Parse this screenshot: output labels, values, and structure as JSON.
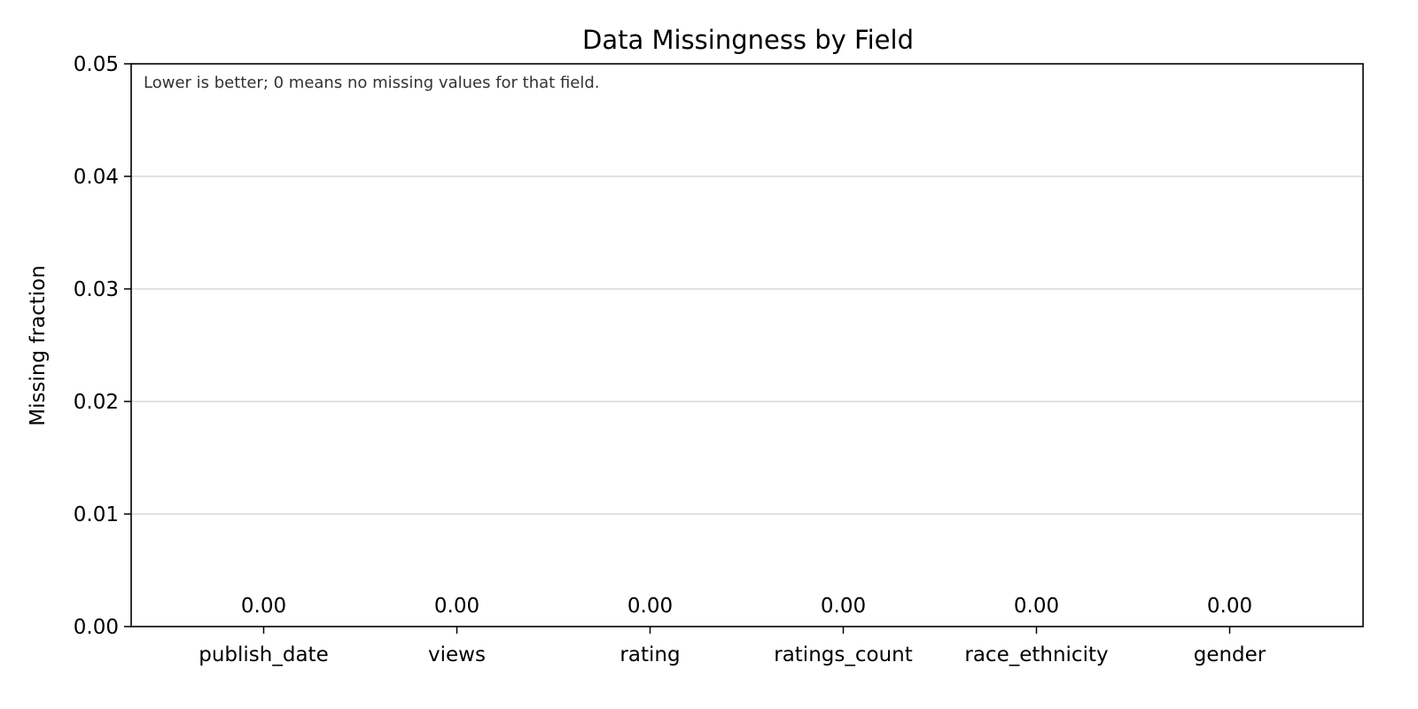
{
  "chart_data": {
    "type": "bar",
    "title": "Data Missingness by Field",
    "xlabel": "",
    "ylabel": "Missing fraction",
    "categories": [
      "publish_date",
      "views",
      "rating",
      "ratings_count",
      "race_ethnicity",
      "gender"
    ],
    "values": [
      0.0,
      0.0,
      0.0,
      0.0,
      0.0,
      0.0
    ],
    "data_labels": [
      "0.00",
      "0.00",
      "0.00",
      "0.00",
      "0.00",
      "0.00"
    ],
    "ylim": [
      0,
      0.05
    ],
    "yticks": [
      0.0,
      0.01,
      0.02,
      0.03,
      0.04,
      0.05
    ],
    "ytick_labels": [
      "0.00",
      "0.01",
      "0.02",
      "0.03",
      "0.04",
      "0.05"
    ],
    "grid": "y",
    "annotation": "Lower is better; 0 means no missing values for that field.",
    "colors": {
      "bar": "#4c72b0",
      "grid": "#d9d9d9",
      "axis": "#000000",
      "annotation": "#333333"
    }
  }
}
